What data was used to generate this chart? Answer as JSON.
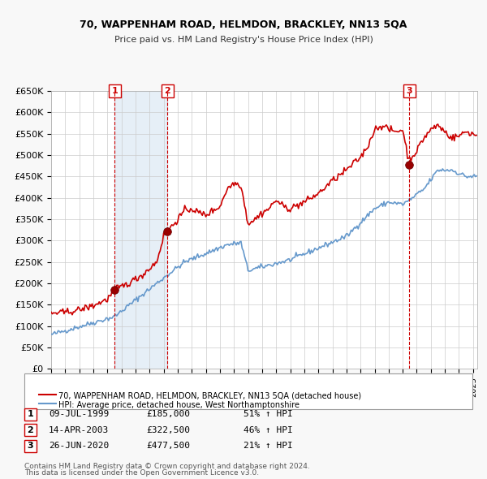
{
  "title1": "70, WAPPENHAM ROAD, HELMDON, BRACKLEY, NN13 5QA",
  "title2": "Price paid vs. HM Land Registry's House Price Index (HPI)",
  "legend_line1": "70, WAPPENHAM ROAD, HELMDON, BRACKLEY, NN13 5QA (detached house)",
  "legend_line2": "HPI: Average price, detached house, West Northamptonshire",
  "transaction1": {
    "label": "1",
    "date": "09-JUL-1999",
    "price": 185000,
    "pct": "51% ↑ HPI",
    "x": 1999.52
  },
  "transaction2": {
    "label": "2",
    "date": "14-APR-2003",
    "price": 322500,
    "pct": "46% ↑ HPI",
    "x": 2003.28
  },
  "transaction3": {
    "label": "3",
    "date": "26-JUN-2020",
    "price": 477500,
    "pct": "21% ↑ HPI",
    "x": 2020.48
  },
  "footnote1": "Contains HM Land Registry data © Crown copyright and database right 2024.",
  "footnote2": "This data is licensed under the Open Government Licence v3.0.",
  "red_color": "#cc0000",
  "blue_color": "#6699cc",
  "bg_color": "#dce9f5",
  "plot_bg": "#ffffff",
  "grid_color": "#cccccc",
  "ylim": [
    0,
    650000
  ],
  "xlim_start": 1995.0,
  "xlim_end": 2025.3
}
